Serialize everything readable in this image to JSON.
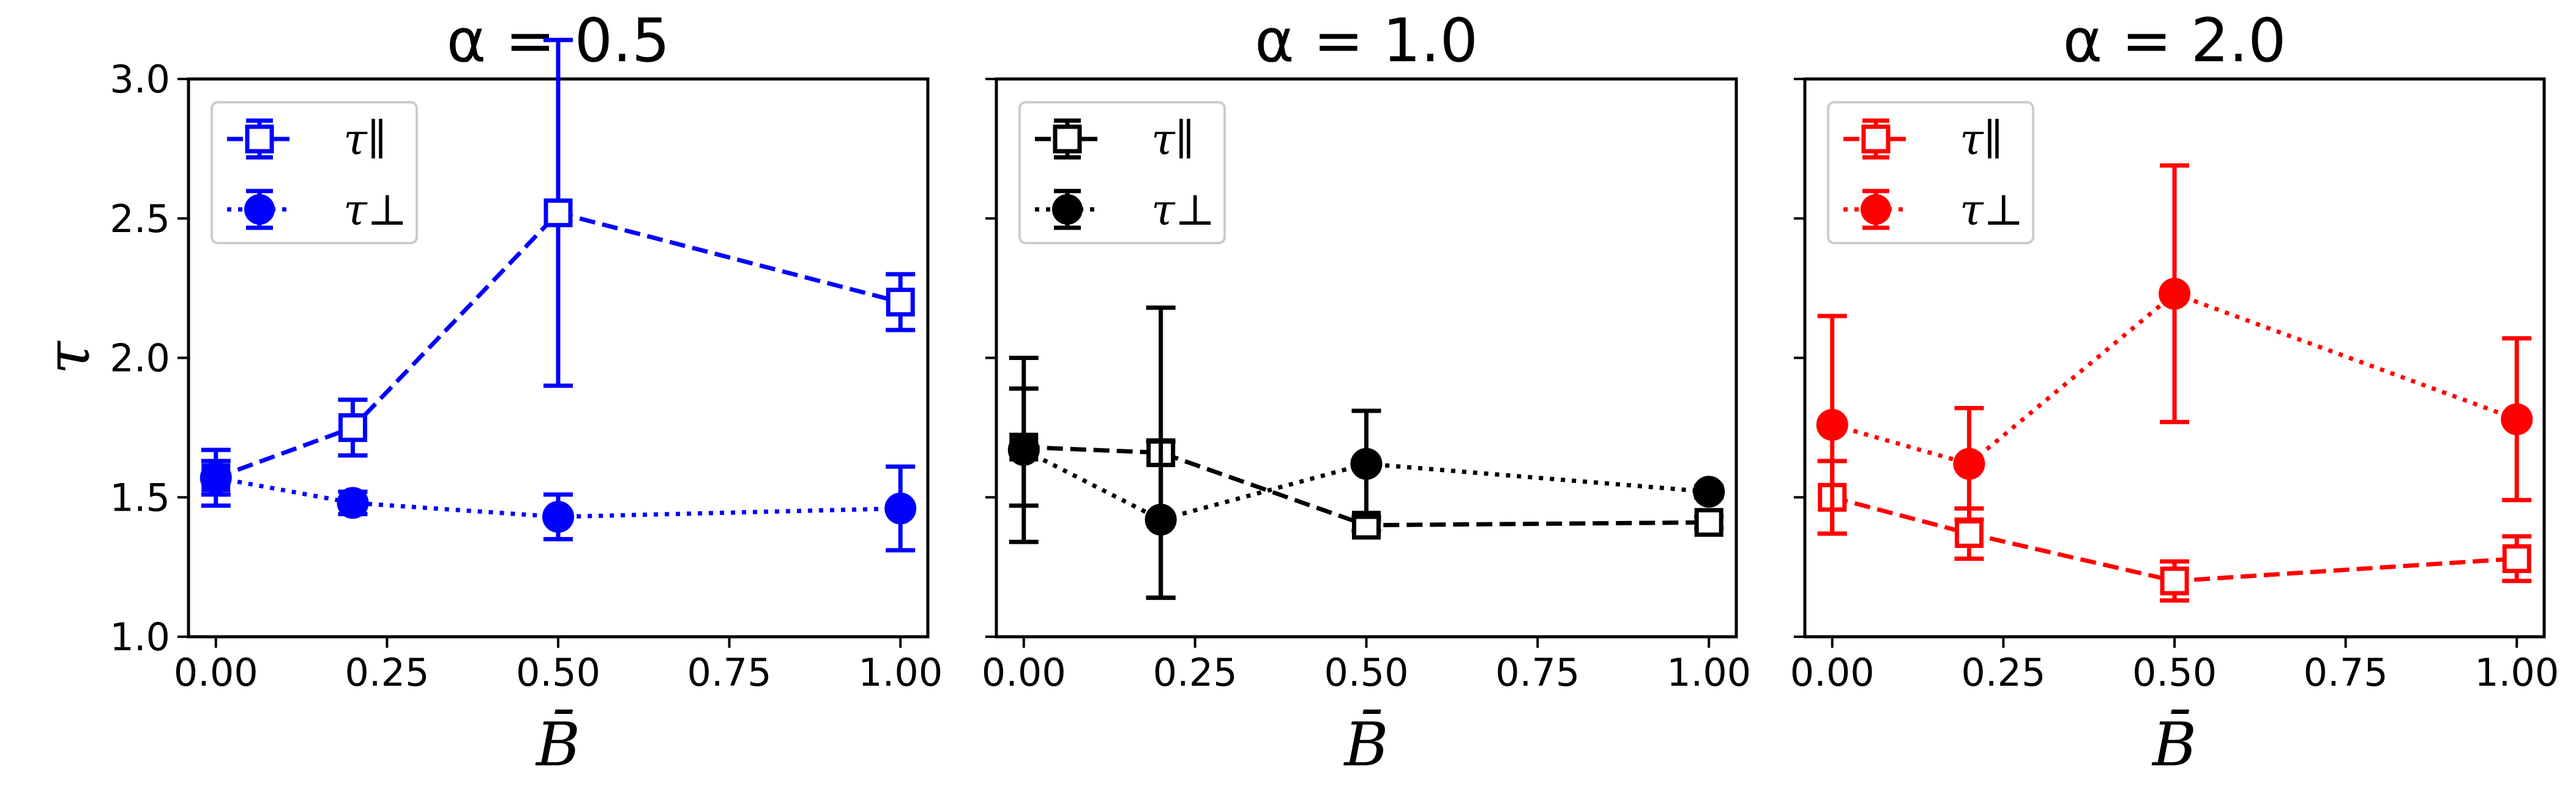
{
  "chart_data": [
    {
      "type": "line",
      "title": "α = 0.5",
      "xlabel": "B̄",
      "ylabel": "τ",
      "xlim": [
        -0.04,
        1.04
      ],
      "ylim": [
        1.0,
        3.0
      ],
      "xticks": [
        "0.00",
        "0.25",
        "0.50",
        "0.75",
        "1.00"
      ],
      "yticks": [
        "1.0",
        "1.5",
        "2.0",
        "2.5",
        "3.0"
      ],
      "color": "#0000ff",
      "legend_position": "top-left",
      "series": [
        {
          "name": "τ∥",
          "marker": "open-square",
          "line": "dashed",
          "x": [
            0.0,
            0.2,
            0.5,
            1.0
          ],
          "y": [
            1.57,
            1.75,
            2.52,
            2.2
          ],
          "err": [
            0.06,
            0.1,
            0.62,
            0.1
          ]
        },
        {
          "name": "τ⊥",
          "marker": "filled-circle",
          "line": "dotted",
          "x": [
            0.0,
            0.2,
            0.5,
            1.0
          ],
          "y": [
            1.57,
            1.48,
            1.43,
            1.46
          ],
          "err": [
            0.1,
            0.04,
            0.08,
            0.15
          ]
        }
      ]
    },
    {
      "type": "line",
      "title": "α = 1.0",
      "xlabel": "B̄",
      "ylabel": "",
      "xlim": [
        -0.04,
        1.04
      ],
      "ylim": [
        1.0,
        3.0
      ],
      "xticks": [
        "0.00",
        "0.25",
        "0.50",
        "0.75",
        "1.00"
      ],
      "yticks": [],
      "color": "#000000",
      "legend_position": "top-left",
      "series": [
        {
          "name": "τ∥",
          "marker": "open-square",
          "line": "dashed",
          "x": [
            0.0,
            0.2,
            0.5,
            1.0
          ],
          "y": [
            1.68,
            1.66,
            1.4,
            1.41
          ],
          "err": [
            0.21,
            0.52,
            0.02,
            0.02
          ]
        },
        {
          "name": "τ⊥",
          "marker": "filled-circle",
          "line": "dotted",
          "x": [
            0.0,
            0.2,
            0.5,
            1.0
          ],
          "y": [
            1.67,
            1.42,
            1.62,
            1.52
          ],
          "err": [
            0.33,
            0.28,
            0.19,
            0.02
          ]
        }
      ]
    },
    {
      "type": "line",
      "title": "α = 2.0",
      "xlabel": "B̄",
      "ylabel": "",
      "xlim": [
        -0.04,
        1.04
      ],
      "ylim": [
        1.0,
        3.0
      ],
      "xticks": [
        "0.00",
        "0.25",
        "0.50",
        "0.75",
        "1.00"
      ],
      "yticks": [],
      "color": "#ff0000",
      "legend_position": "top-left",
      "series": [
        {
          "name": "τ∥",
          "marker": "open-square",
          "line": "dashed",
          "x": [
            0.0,
            0.2,
            0.5,
            1.0
          ],
          "y": [
            1.5,
            1.37,
            1.2,
            1.28
          ],
          "err": [
            0.13,
            0.09,
            0.07,
            0.08
          ]
        },
        {
          "name": "τ⊥",
          "marker": "filled-circle",
          "line": "dotted",
          "x": [
            0.0,
            0.2,
            0.5,
            1.0
          ],
          "y": [
            1.76,
            1.62,
            2.23,
            1.78
          ],
          "err": [
            0.39,
            0.2,
            0.46,
            0.29
          ]
        }
      ]
    }
  ]
}
